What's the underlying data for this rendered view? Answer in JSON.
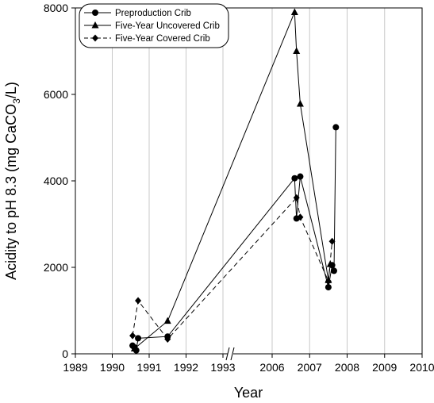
{
  "chart_data": {
    "type": "line",
    "title": "",
    "xlabel": "Year",
    "ylabel": "Acidity to pH 8.3 (mg CaCO₃/L)",
    "ylim": [
      0,
      8000
    ],
    "yticks": [
      0,
      2000,
      4000,
      6000,
      8000
    ],
    "xticks": [
      "1989",
      "1990",
      "1991",
      "1992",
      "1993",
      "2006",
      "2007",
      "2008",
      "2009",
      "2010"
    ],
    "x_axis_break": "between 1993 and 2006",
    "grid": "vertical lines at x ticks",
    "legend_position": "top-left",
    "series": [
      {
        "name": "Preproduction Crib",
        "marker": "circle",
        "line": "solid",
        "points": [
          {
            "x": 1990.55,
            "y": 190
          },
          {
            "x": 1990.6,
            "y": 150
          },
          {
            "x": 1990.65,
            "y": 80
          },
          {
            "x": 1990.7,
            "y": 360
          },
          {
            "x": 1991.5,
            "y": 400
          },
          {
            "x": 2006.6,
            "y": 4060
          },
          {
            "x": 2006.65,
            "y": 3130
          },
          {
            "x": 2006.75,
            "y": 4100
          },
          {
            "x": 2007.5,
            "y": 1540
          },
          {
            "x": 2007.6,
            "y": 2050
          },
          {
            "x": 2007.65,
            "y": 1920
          },
          {
            "x": 2007.7,
            "y": 5240
          }
        ]
      },
      {
        "name": "Five-Year Uncovered Crib",
        "marker": "triangle",
        "line": "solid",
        "points": [
          {
            "x": 1990.6,
            "y": 120
          },
          {
            "x": 1991.5,
            "y": 760
          },
          {
            "x": 2006.6,
            "y": 7900
          },
          {
            "x": 2006.65,
            "y": 7000
          },
          {
            "x": 2006.75,
            "y": 5780
          },
          {
            "x": 2007.5,
            "y": 1700
          },
          {
            "x": 2007.55,
            "y": 2070
          }
        ]
      },
      {
        "name": "Five-Year Covered Crib",
        "marker": "diamond",
        "line": "dashed",
        "points": [
          {
            "x": 1990.55,
            "y": 420
          },
          {
            "x": 1990.7,
            "y": 1230
          },
          {
            "x": 1991.5,
            "y": 340
          },
          {
            "x": 2006.65,
            "y": 3610
          },
          {
            "x": 2006.75,
            "y": 3160
          },
          {
            "x": 2007.5,
            "y": 1680
          },
          {
            "x": 2007.6,
            "y": 2600
          }
        ]
      }
    ]
  }
}
